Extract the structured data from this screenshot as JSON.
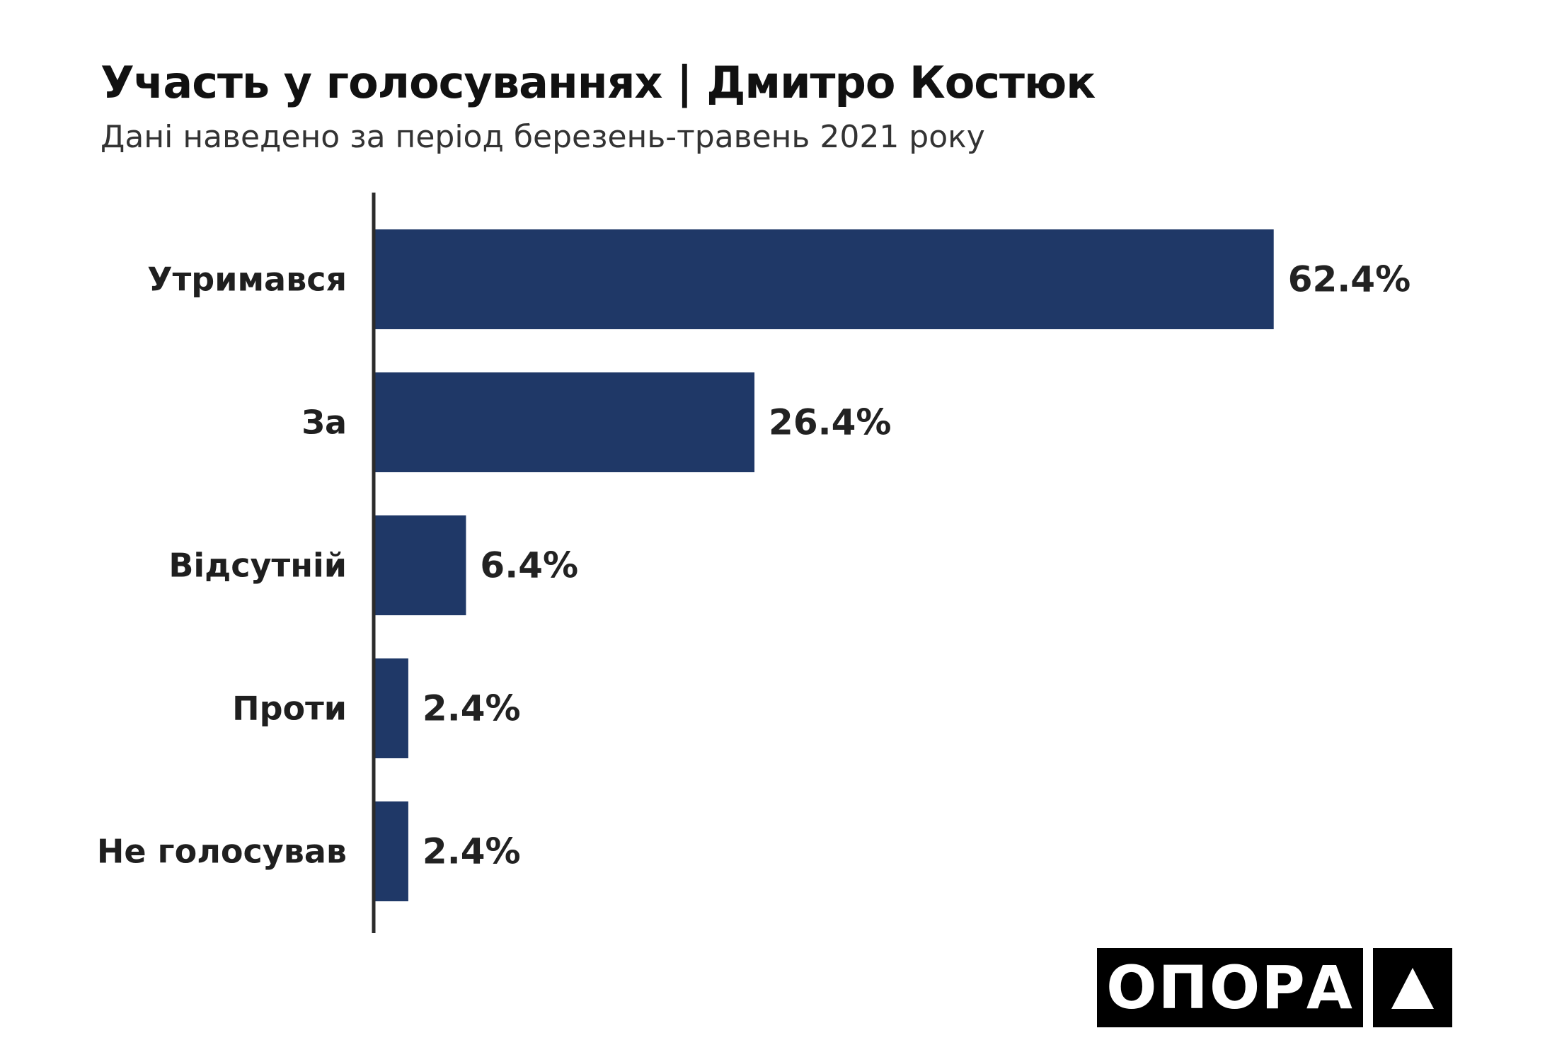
{
  "title": "Участь у голосуваннях | Дмитро Костюк",
  "subtitle": "Дані наведено за період березень-травень 2021 року",
  "colors": {
    "bar": "#1f3867",
    "axis": "#2b2b2b",
    "logo_bg": "#000000",
    "logo_fg": "#ffffff"
  },
  "logo": {
    "text": "ОПОРА",
    "mark_icon": "triangle-up-icon"
  },
  "chart_data": {
    "type": "bar",
    "orientation": "horizontal",
    "categories": [
      "Утримався",
      "За",
      "Відсутній",
      "Проти",
      "Не голосував"
    ],
    "values": [
      62.4,
      26.4,
      6.4,
      2.4,
      2.4
    ],
    "value_labels": [
      "62.4%",
      "26.4%",
      "6.4%",
      "2.4%",
      "2.4%"
    ],
    "unit": "%",
    "xlim": [
      0,
      100
    ],
    "grid": false,
    "legend": "none"
  }
}
